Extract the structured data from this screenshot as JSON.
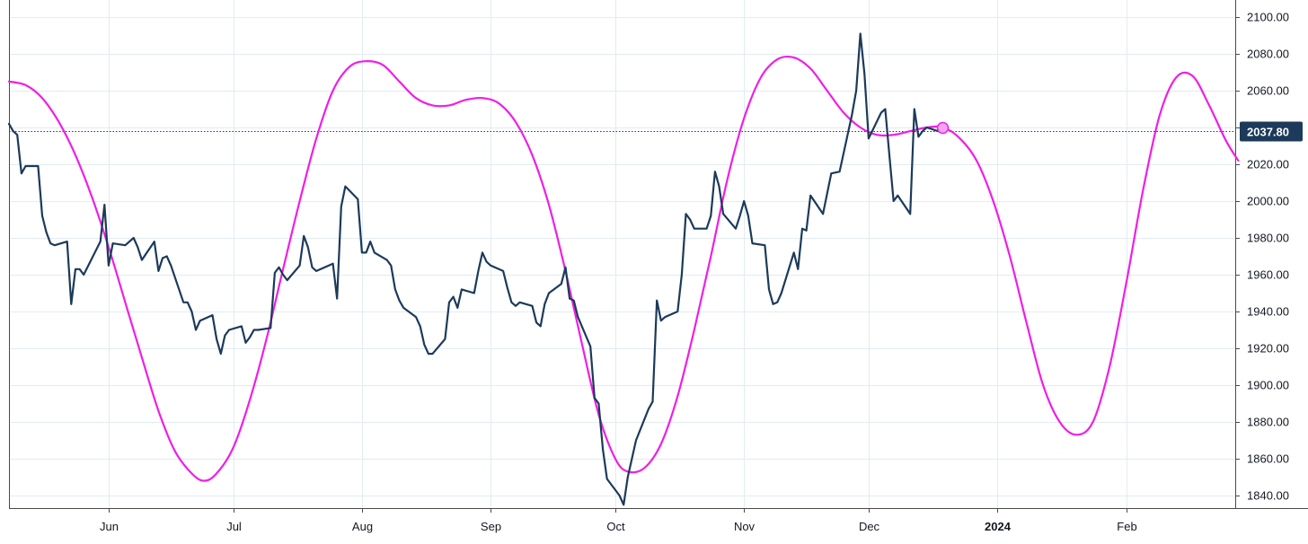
{
  "chart_data": {
    "type": "line",
    "y_axis": {
      "range": [
        1835,
        2105
      ],
      "ticks": [
        1840,
        1860,
        1880,
        1900,
        1920,
        1940,
        1960,
        1980,
        2000,
        2020,
        2040,
        2060,
        2080,
        2100
      ],
      "tick_labels": [
        "1840.00",
        "1860.00",
        "1880.00",
        "1900.00",
        "1920.00",
        "1940.00",
        "1960.00",
        "1980.00",
        "2000.00",
        "2020.00",
        "2040.00",
        "2060.00",
        "2080.00",
        "2100.00"
      ],
      "position": "right"
    },
    "x_axis": {
      "range": [
        "2023-05-08",
        "2024-02-21"
      ],
      "ticks": [
        {
          "label": "Jun",
          "date": "2023-06-01",
          "bold": false
        },
        {
          "label": "Jul",
          "date": "2023-07-01",
          "bold": false
        },
        {
          "label": "Aug",
          "date": "2023-08-01",
          "bold": false
        },
        {
          "label": "Sep",
          "date": "2023-09-01",
          "bold": false
        },
        {
          "label": "Oct",
          "date": "2023-10-01",
          "bold": false
        },
        {
          "label": "Nov",
          "date": "2023-11-01",
          "bold": false
        },
        {
          "label": "Dec",
          "date": "2023-12-01",
          "bold": false
        },
        {
          "label": "2024",
          "date": "2024-01-01",
          "bold": true
        },
        {
          "label": "Feb",
          "date": "2024-02-01",
          "bold": false
        }
      ]
    },
    "grid": true,
    "last_value": {
      "label": "2037.80",
      "value": 2037.8
    },
    "colors": {
      "price": "#1c3a5a",
      "cycle": "#f01ee6",
      "badge": "#1c3a5a",
      "marker_fill": "#f3a6ef"
    },
    "series": [
      {
        "kind": "price",
        "points": [
          [
            "2023-05-08",
            2042
          ],
          [
            "2023-05-09",
            2038
          ],
          [
            "2023-05-10",
            2036
          ],
          [
            "2023-05-11",
            2015
          ],
          [
            "2023-05-12",
            2019
          ],
          [
            "2023-05-15",
            2019
          ],
          [
            "2023-05-16",
            1992
          ],
          [
            "2023-05-17",
            1983
          ],
          [
            "2023-05-18",
            1977
          ],
          [
            "2023-05-19",
            1976
          ],
          [
            "2023-05-22",
            1978
          ],
          [
            "2023-05-23",
            1944
          ],
          [
            "2023-05-24",
            1963
          ],
          [
            "2023-05-25",
            1963
          ],
          [
            "2023-05-26",
            1960
          ],
          [
            "2023-05-30",
            1978
          ],
          [
            "2023-05-31",
            1998
          ],
          [
            "2023-06-01",
            1965
          ],
          [
            "2023-06-02",
            1977
          ],
          [
            "2023-06-05",
            1976
          ],
          [
            "2023-06-06",
            1978
          ],
          [
            "2023-06-07",
            1980
          ],
          [
            "2023-06-08",
            1975
          ],
          [
            "2023-06-09",
            1968
          ],
          [
            "2023-06-12",
            1978
          ],
          [
            "2023-06-13",
            1962
          ],
          [
            "2023-06-14",
            1969
          ],
          [
            "2023-06-15",
            1970
          ],
          [
            "2023-06-16",
            1965
          ],
          [
            "2023-06-19",
            1945
          ],
          [
            "2023-06-20",
            1945
          ],
          [
            "2023-06-21",
            1940
          ],
          [
            "2023-06-22",
            1930
          ],
          [
            "2023-06-23",
            1935
          ],
          [
            "2023-06-26",
            1938
          ],
          [
            "2023-06-27",
            1925
          ],
          [
            "2023-06-28",
            1917
          ],
          [
            "2023-06-29",
            1927
          ],
          [
            "2023-06-30",
            1930
          ],
          [
            "2023-07-03",
            1932
          ],
          [
            "2023-07-04",
            1923
          ],
          [
            "2023-07-05",
            1926
          ],
          [
            "2023-07-06",
            1930
          ],
          [
            "2023-07-07",
            1930
          ],
          [
            "2023-07-10",
            1931
          ],
          [
            "2023-07-11",
            1961
          ],
          [
            "2023-07-12",
            1964
          ],
          [
            "2023-07-13",
            1960
          ],
          [
            "2023-07-14",
            1957
          ],
          [
            "2023-07-17",
            1965
          ],
          [
            "2023-07-18",
            1981
          ],
          [
            "2023-07-19",
            1975
          ],
          [
            "2023-07-20",
            1964
          ],
          [
            "2023-07-21",
            1962
          ],
          [
            "2023-07-24",
            1965
          ],
          [
            "2023-07-25",
            1966
          ],
          [
            "2023-07-26",
            1947
          ],
          [
            "2023-07-27",
            1997
          ],
          [
            "2023-07-28",
            2008
          ],
          [
            "2023-07-31",
            2001
          ],
          [
            "2023-08-01",
            1972
          ],
          [
            "2023-08-02",
            1972
          ],
          [
            "2023-08-03",
            1978
          ],
          [
            "2023-08-04",
            1972
          ],
          [
            "2023-08-07",
            1968
          ],
          [
            "2023-08-08",
            1965
          ],
          [
            "2023-08-09",
            1952
          ],
          [
            "2023-08-10",
            1946
          ],
          [
            "2023-08-11",
            1942
          ],
          [
            "2023-08-14",
            1937
          ],
          [
            "2023-08-15",
            1932
          ],
          [
            "2023-08-16",
            1922
          ],
          [
            "2023-08-17",
            1917
          ],
          [
            "2023-08-18",
            1917
          ],
          [
            "2023-08-21",
            1925
          ],
          [
            "2023-08-22",
            1945
          ],
          [
            "2023-08-23",
            1948
          ],
          [
            "2023-08-24",
            1942
          ],
          [
            "2023-08-25",
            1952
          ],
          [
            "2023-08-28",
            1950
          ],
          [
            "2023-08-29",
            1962
          ],
          [
            "2023-08-30",
            1972
          ],
          [
            "2023-08-31",
            1967
          ],
          [
            "2023-09-01",
            1965
          ],
          [
            "2023-09-04",
            1962
          ],
          [
            "2023-09-05",
            1953
          ],
          [
            "2023-09-06",
            1945
          ],
          [
            "2023-09-07",
            1943
          ],
          [
            "2023-09-08",
            1945
          ],
          [
            "2023-09-11",
            1943
          ],
          [
            "2023-09-12",
            1934
          ],
          [
            "2023-09-13",
            1932
          ],
          [
            "2023-09-14",
            1944
          ],
          [
            "2023-09-15",
            1950
          ],
          [
            "2023-09-18",
            1955
          ],
          [
            "2023-09-19",
            1964
          ],
          [
            "2023-09-20",
            1947
          ],
          [
            "2023-09-21",
            1946
          ],
          [
            "2023-09-22",
            1937
          ],
          [
            "2023-09-25",
            1921
          ],
          [
            "2023-09-26",
            1893
          ],
          [
            "2023-09-27",
            1890
          ],
          [
            "2023-09-28",
            1865
          ],
          [
            "2023-09-29",
            1849
          ],
          [
            "2023-10-02",
            1840
          ],
          [
            "2023-10-03",
            1835
          ],
          [
            "2023-10-04",
            1850
          ],
          [
            "2023-10-05",
            1860
          ],
          [
            "2023-10-06",
            1870
          ],
          [
            "2023-10-09",
            1887
          ],
          [
            "2023-10-10",
            1891
          ],
          [
            "2023-10-11",
            1946
          ],
          [
            "2023-10-12",
            1935
          ],
          [
            "2023-10-13",
            1937
          ],
          [
            "2023-10-16",
            1940
          ],
          [
            "2023-10-17",
            1960
          ],
          [
            "2023-10-18",
            1993
          ],
          [
            "2023-10-19",
            1990
          ],
          [
            "2023-10-20",
            1985
          ],
          [
            "2023-10-23",
            1985
          ],
          [
            "2023-10-24",
            1992
          ],
          [
            "2023-10-25",
            2016
          ],
          [
            "2023-10-26",
            2008
          ],
          [
            "2023-10-27",
            1993
          ],
          [
            "2023-10-30",
            1985
          ],
          [
            "2023-10-31",
            1992
          ],
          [
            "2023-11-01",
            2000
          ],
          [
            "2023-11-02",
            1992
          ],
          [
            "2023-11-03",
            1977
          ],
          [
            "2023-11-06",
            1976
          ],
          [
            "2023-11-07",
            1952
          ],
          [
            "2023-11-08",
            1944
          ],
          [
            "2023-11-09",
            1945
          ],
          [
            "2023-11-10",
            1950
          ],
          [
            "2023-11-13",
            1972
          ],
          [
            "2023-11-14",
            1963
          ],
          [
            "2023-11-15",
            1985
          ],
          [
            "2023-11-16",
            1984
          ],
          [
            "2023-11-17",
            2003
          ],
          [
            "2023-11-20",
            1993
          ],
          [
            "2023-11-21",
            2004
          ],
          [
            "2023-11-22",
            2015
          ],
          [
            "2023-11-24",
            2016
          ],
          [
            "2023-11-27",
            2047
          ],
          [
            "2023-11-28",
            2060
          ],
          [
            "2023-11-29",
            2091
          ],
          [
            "2023-11-30",
            2069
          ],
          [
            "2023-12-01",
            2034
          ],
          [
            "2023-12-04",
            2048
          ],
          [
            "2023-12-05",
            2050
          ],
          [
            "2023-12-06",
            2025
          ],
          [
            "2023-12-07",
            2000
          ],
          [
            "2023-12-08",
            2003
          ],
          [
            "2023-12-11",
            1993
          ],
          [
            "2023-12-12",
            2050
          ],
          [
            "2023-12-13",
            2035
          ],
          [
            "2023-12-14",
            2038
          ],
          [
            "2023-12-15",
            2040
          ],
          [
            "2023-12-18",
            2037.8
          ]
        ]
      },
      {
        "kind": "cycle",
        "points": [
          [
            "2023-05-08",
            2065
          ],
          [
            "2023-05-12",
            2063
          ],
          [
            "2023-05-16",
            2056
          ],
          [
            "2023-05-20",
            2043
          ],
          [
            "2023-05-24",
            2025
          ],
          [
            "2023-05-28",
            2002
          ],
          [
            "2023-06-01",
            1975
          ],
          [
            "2023-06-05",
            1945
          ],
          [
            "2023-06-09",
            1915
          ],
          [
            "2023-06-13",
            1886
          ],
          [
            "2023-06-17",
            1864
          ],
          [
            "2023-06-21",
            1852
          ],
          [
            "2023-06-24",
            1848
          ],
          [
            "2023-06-27",
            1852
          ],
          [
            "2023-07-01",
            1866
          ],
          [
            "2023-07-05",
            1892
          ],
          [
            "2023-07-09",
            1925
          ],
          [
            "2023-07-13",
            1963
          ],
          [
            "2023-07-17",
            2000
          ],
          [
            "2023-07-21",
            2034
          ],
          [
            "2023-07-25",
            2060
          ],
          [
            "2023-07-29",
            2073
          ],
          [
            "2023-08-02",
            2076
          ],
          [
            "2023-08-06",
            2074
          ],
          [
            "2023-08-10",
            2065
          ],
          [
            "2023-08-14",
            2056
          ],
          [
            "2023-08-18",
            2052
          ],
          [
            "2023-08-22",
            2052
          ],
          [
            "2023-08-26",
            2055
          ],
          [
            "2023-08-30",
            2056
          ],
          [
            "2023-09-03",
            2053
          ],
          [
            "2023-09-07",
            2043
          ],
          [
            "2023-09-11",
            2025
          ],
          [
            "2023-09-15",
            1998
          ],
          [
            "2023-09-19",
            1962
          ],
          [
            "2023-09-23",
            1922
          ],
          [
            "2023-09-27",
            1884
          ],
          [
            "2023-10-01",
            1860
          ],
          [
            "2023-10-04",
            1853
          ],
          [
            "2023-10-08",
            1855
          ],
          [
            "2023-10-12",
            1868
          ],
          [
            "2023-10-16",
            1894
          ],
          [
            "2023-10-20",
            1930
          ],
          [
            "2023-10-24",
            1970
          ],
          [
            "2023-10-28",
            2012
          ],
          [
            "2023-11-01",
            2045
          ],
          [
            "2023-11-05",
            2067
          ],
          [
            "2023-11-09",
            2077
          ],
          [
            "2023-11-13",
            2078
          ],
          [
            "2023-11-17",
            2072
          ],
          [
            "2023-11-21",
            2060
          ],
          [
            "2023-11-25",
            2048
          ],
          [
            "2023-11-29",
            2040
          ],
          [
            "2023-12-03",
            2036
          ],
          [
            "2023-12-07",
            2036
          ],
          [
            "2023-12-11",
            2038
          ],
          [
            "2023-12-15",
            2040
          ],
          [
            "2023-12-19",
            2040
          ],
          [
            "2023-12-23",
            2034
          ],
          [
            "2023-12-27",
            2022
          ],
          [
            "2023-12-31",
            2000
          ],
          [
            "2024-01-04",
            1970
          ],
          [
            "2024-01-08",
            1934
          ],
          [
            "2024-01-12",
            1900
          ],
          [
            "2024-01-16",
            1880
          ],
          [
            "2024-01-20",
            1873
          ],
          [
            "2024-01-24",
            1880
          ],
          [
            "2024-01-28",
            1910
          ],
          [
            "2024-02-01",
            1955
          ],
          [
            "2024-02-05",
            2005
          ],
          [
            "2024-02-09",
            2046
          ],
          [
            "2024-02-13",
            2067
          ],
          [
            "2024-02-17",
            2068
          ],
          [
            "2024-02-21",
            2052
          ],
          [
            "2024-02-25",
            2033
          ],
          [
            "2024-02-28",
            2022
          ]
        ]
      }
    ]
  }
}
